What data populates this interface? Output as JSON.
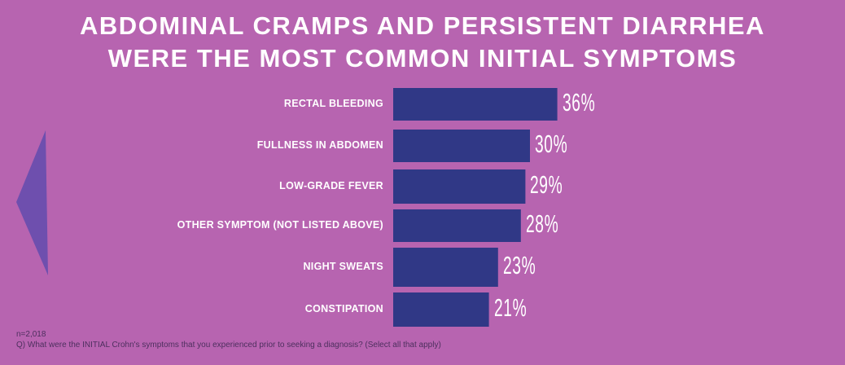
{
  "title_lines": [
    "Abdominal cramps and persistent diarrhea",
    "were the most common initial symptoms"
  ],
  "chart_data": {
    "type": "bar",
    "orientation": "horizontal",
    "title": "Abdominal cramps and persistent diarrhea were the most common initial symptoms",
    "categories": [
      "RECTAL BLEEDING",
      "FULLNESS IN ABDOMEN",
      "LOW-GRADE FEVER",
      "OTHER SYMPTOM (NOT LISTED ABOVE)",
      "NIGHT SWEATS",
      "CONSTIPATION"
    ],
    "values": [
      36,
      30,
      29,
      28,
      23,
      21
    ],
    "value_labels": [
      "36%",
      "30%",
      "29%",
      "28%",
      "23%",
      "21%"
    ],
    "unit": "%",
    "xlim": [
      0,
      100
    ],
    "grid": false
  },
  "footnote": {
    "n": "n=2,018",
    "question": "Q) What were the INITIAL Crohn's symptoms that you experienced prior to seeking a diagnosis? (Select all that apply)"
  },
  "colors": {
    "background": "#b764b0",
    "bar": "#303886",
    "arrow": "#6e4fae",
    "text": "#ffffff"
  }
}
